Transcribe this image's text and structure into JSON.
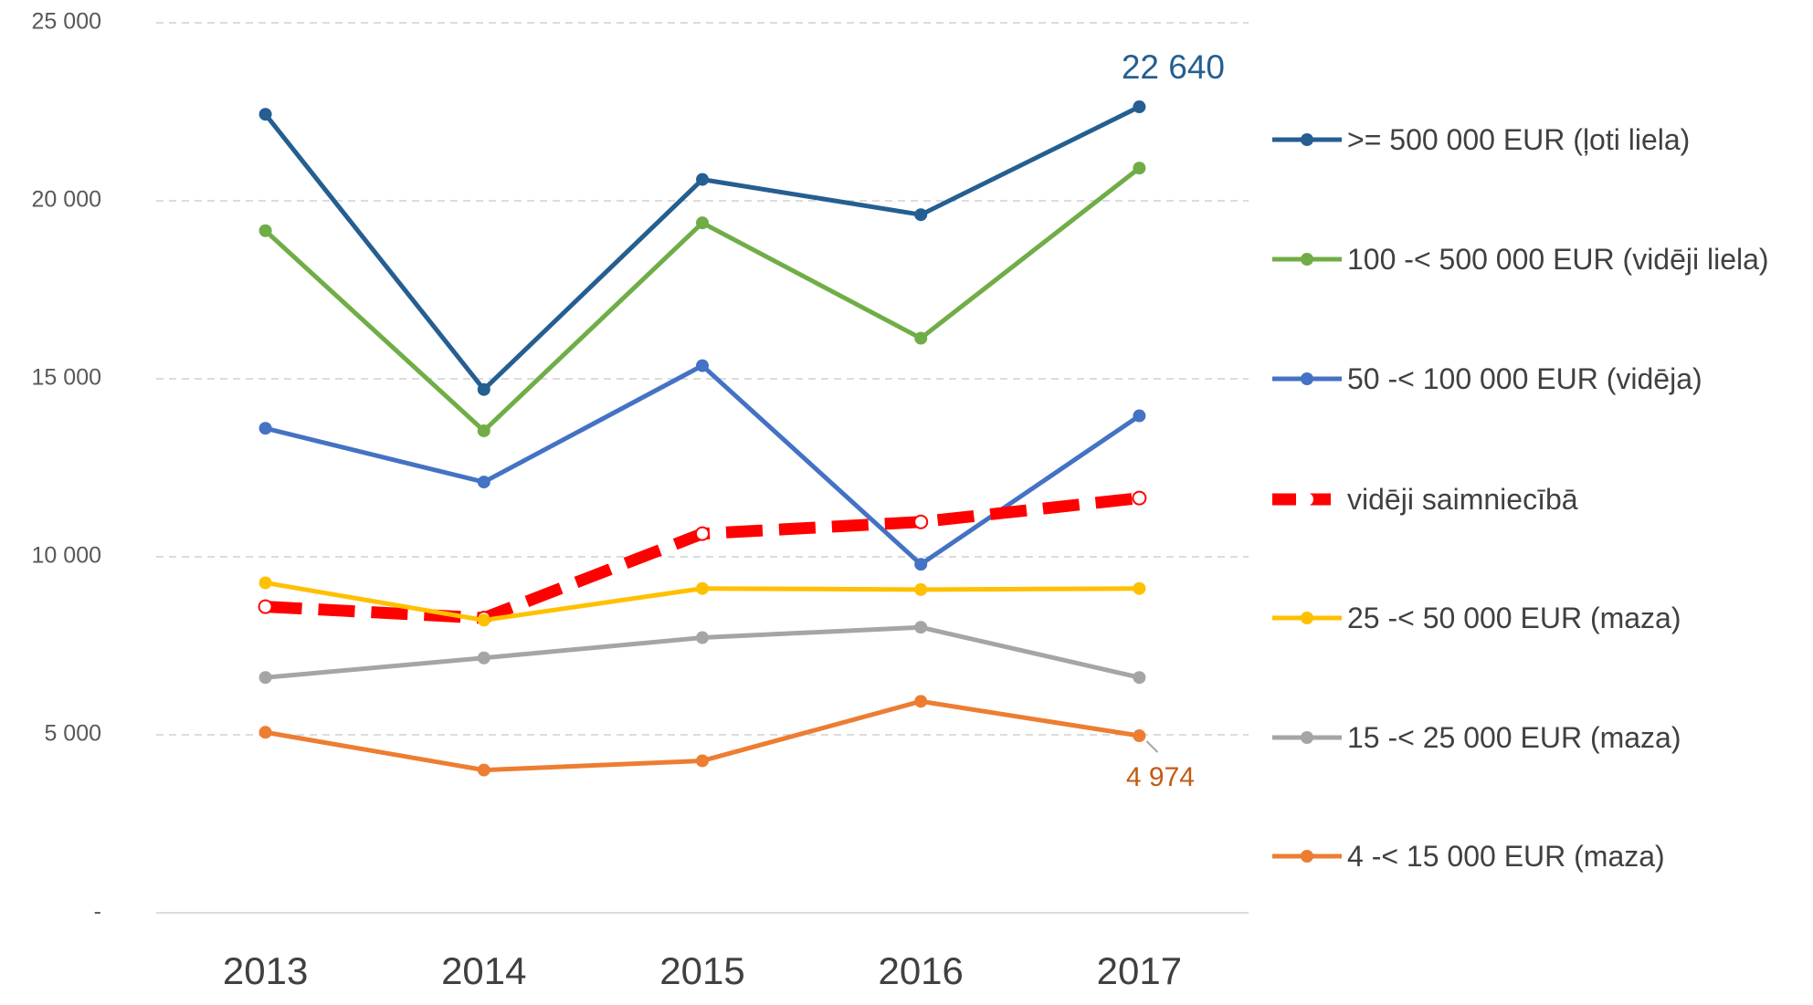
{
  "chart_data": {
    "type": "line",
    "categories": [
      "2013",
      "2014",
      "2015",
      "2016",
      "2017"
    ],
    "ylim": [
      0,
      25000
    ],
    "yticks": [
      {
        "value": 0,
        "label": "-"
      },
      {
        "value": 5000,
        "label": "5 000"
      },
      {
        "value": 10000,
        "label": "10 000"
      },
      {
        "value": 15000,
        "label": "15 000"
      },
      {
        "value": 20000,
        "label": "20 000"
      },
      {
        "value": 25000,
        "label": "25 000"
      }
    ],
    "grid": true,
    "legend": "right",
    "series": [
      {
        "name": ">= 500 000 EUR (ļoti liela)",
        "color": "#255e91",
        "values": [
          22430,
          14700,
          20600,
          19610,
          22640
        ],
        "value_labels": [
          null,
          null,
          null,
          null,
          "22 640"
        ]
      },
      {
        "name": "100 -< 500 000 EUR (vidēji liela)",
        "color": "#70ad47",
        "values": [
          19160,
          13540,
          19380,
          16140,
          20920
        ]
      },
      {
        "name": "50 -< 100 000 EUR (vidēja)",
        "color": "#4472c4",
        "values": [
          13610,
          12100,
          15370,
          9790,
          13960
        ]
      },
      {
        "name": "vidēji saimniecībā",
        "color": "#ff0000",
        "dashed": true,
        "values": [
          8600,
          8280,
          10650,
          10980,
          11650
        ]
      },
      {
        "name": "25 -< 50 000 EUR (maza)",
        "color": "#ffc000",
        "values": [
          9270,
          8220,
          9110,
          9080,
          9110
        ]
      },
      {
        "name": "15 -< 25 000 EUR (maza)",
        "color": "#a5a5a5",
        "values": [
          6610,
          7160,
          7730,
          8020,
          6610
        ]
      },
      {
        "name": "4 -< 15 000 EUR (maza)",
        "color": "#ed7d31",
        "values": [
          5070,
          4010,
          4270,
          5940,
          4974
        ],
        "value_labels": [
          null,
          null,
          null,
          null,
          "4 974"
        ]
      }
    ]
  }
}
